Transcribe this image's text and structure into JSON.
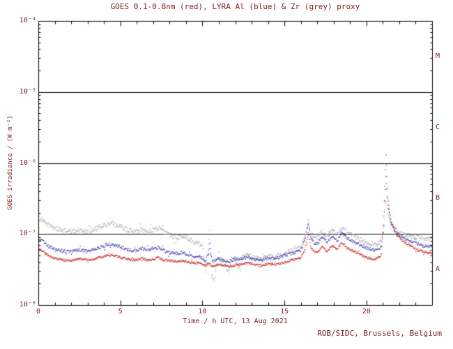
{
  "credit": "ROB/SIDC, Brussels, Belgium",
  "colors": {
    "red": "#cc2020",
    "blue": "#3b3bb0",
    "grey": "#a8a8a8",
    "axis": "#000000",
    "text": "#7a2121",
    "background": "#ffffff"
  },
  "chart_data": {
    "type": "scatter",
    "title": "GOES 0.1-0.8nm (red), LYRA Al (blue) & Zr (grey) proxy",
    "xlabel": "Time / h UTC, 13 Aug 2021",
    "ylabel": "GOES irradiance / (W m⁻²)",
    "x_range": [
      0,
      24
    ],
    "x_major_ticks": [
      0,
      5,
      10,
      15,
      20
    ],
    "x_minor_step": 1,
    "y_scale": "log",
    "y_exponent_range": [
      -8,
      -4
    ],
    "y_ticks": [
      {
        "exponent": -8,
        "label": "10⁻⁸"
      },
      {
        "exponent": -7,
        "label": "10⁻⁷"
      },
      {
        "exponent": -6,
        "label": "10⁻⁶"
      },
      {
        "exponent": -5,
        "label": "10⁻⁵"
      },
      {
        "exponent": -4,
        "label": "10⁻⁴"
      }
    ],
    "hline_exponents": [
      -7,
      -6,
      -5
    ],
    "flare_class_labels": [
      {
        "label": "A",
        "lower_exponent": -8
      },
      {
        "label": "B",
        "lower_exponent": -7
      },
      {
        "label": "C",
        "lower_exponent": -6
      },
      {
        "label": "M",
        "lower_exponent": -5
      }
    ],
    "grid": "off",
    "legend": "in-title",
    "series": [
      {
        "name": "LYRA Zr proxy",
        "color_key": "grey",
        "points": [
          [
            0.0,
            1.7e-07
          ],
          [
            0.3,
            1.5e-07
          ],
          [
            0.7,
            1.32e-07
          ],
          [
            1.0,
            1.22e-07
          ],
          [
            1.5,
            1.12e-07
          ],
          [
            2.0,
            1.08e-07
          ],
          [
            2.5,
            1.14e-07
          ],
          [
            3.0,
            1.08e-07
          ],
          [
            3.5,
            1.18e-07
          ],
          [
            4.0,
            1.32e-07
          ],
          [
            4.3,
            1.4e-07
          ],
          [
            4.7,
            1.35e-07
          ],
          [
            5.0,
            1.28e-07
          ],
          [
            5.5,
            1.12e-07
          ],
          [
            6.0,
            1.08e-07
          ],
          [
            6.3,
            1.16e-07
          ],
          [
            6.6,
            1.1e-07
          ],
          [
            7.0,
            1.14e-07
          ],
          [
            7.3,
            1.22e-07
          ],
          [
            7.6,
            1.1e-07
          ],
          [
            8.0,
            9.6e-08
          ],
          [
            8.4,
            9e-08
          ],
          [
            8.8,
            9.4e-08
          ],
          [
            9.2,
            8.6e-08
          ],
          [
            9.5,
            7.6e-08
          ],
          [
            9.8,
            7.9e-08
          ],
          [
            10.05,
            6e-08
          ],
          [
            10.2,
            2.8e-08
          ],
          [
            10.35,
            5.5e-08
          ],
          [
            10.44,
            1.1e-07
          ],
          [
            10.55,
            3e-08
          ],
          [
            10.7,
            2.2e-08
          ],
          [
            10.85,
            4e-08
          ],
          [
            11.0,
            4.6e-08
          ],
          [
            11.3,
            4.2e-08
          ],
          [
            11.6,
            2.9e-08
          ],
          [
            11.75,
            4.4e-08
          ],
          [
            12.0,
            4.6e-08
          ],
          [
            12.3,
            3.2e-08
          ],
          [
            12.45,
            4.8e-08
          ],
          [
            12.8,
            5e-08
          ],
          [
            13.2,
            4.6e-08
          ],
          [
            13.6,
            4.4e-08
          ],
          [
            14.0,
            4.9e-08
          ],
          [
            14.5,
            4.7e-08
          ],
          [
            15.0,
            5.4e-08
          ],
          [
            15.5,
            5.9e-08
          ],
          [
            16.0,
            6.6e-08
          ],
          [
            16.3,
            1.05e-07
          ],
          [
            16.45,
            1.6e-07
          ],
          [
            16.6,
            1.05e-07
          ],
          [
            16.8,
            9e-08
          ],
          [
            17.0,
            8.6e-08
          ],
          [
            17.3,
            1.1e-07
          ],
          [
            17.6,
            9.2e-08
          ],
          [
            17.9,
            1.15e-07
          ],
          [
            18.2,
            9.6e-08
          ],
          [
            18.5,
            1.22e-07
          ],
          [
            18.8,
            1.05e-07
          ],
          [
            19.1,
            9.5e-08
          ],
          [
            19.5,
            8.6e-08
          ],
          [
            20.0,
            7.6e-08
          ],
          [
            20.5,
            7e-08
          ],
          [
            20.9,
            7.8e-08
          ],
          [
            21.05,
            1.3e-07
          ],
          [
            21.18,
            3.6e-07
          ],
          [
            21.3,
            2e-07
          ],
          [
            21.5,
            1.35e-07
          ],
          [
            21.8,
            1.12e-07
          ],
          [
            22.2,
            1e-07
          ],
          [
            22.6,
            9.4e-08
          ],
          [
            23.0,
            9e-08
          ],
          [
            23.5,
            8.6e-08
          ],
          [
            24.0,
            8.8e-08
          ]
        ]
      },
      {
        "name": "LYRA Al proxy",
        "color_key": "blue",
        "points": [
          [
            0.0,
            8.8e-08
          ],
          [
            0.3,
            7.8e-08
          ],
          [
            0.7,
            6.6e-08
          ],
          [
            1.0,
            6.2e-08
          ],
          [
            1.5,
            5.8e-08
          ],
          [
            2.0,
            5.6e-08
          ],
          [
            2.5,
            6e-08
          ],
          [
            3.0,
            5.7e-08
          ],
          [
            3.5,
            6.1e-08
          ],
          [
            4.0,
            6.8e-08
          ],
          [
            4.3,
            7.2e-08
          ],
          [
            4.7,
            6.9e-08
          ],
          [
            5.0,
            6.6e-08
          ],
          [
            5.5,
            6e-08
          ],
          [
            6.0,
            5.8e-08
          ],
          [
            6.3,
            6.3e-08
          ],
          [
            6.6,
            5.9e-08
          ],
          [
            7.0,
            6.1e-08
          ],
          [
            7.3,
            6.5e-08
          ],
          [
            7.6,
            5.9e-08
          ],
          [
            8.0,
            5.5e-08
          ],
          [
            8.4,
            5.3e-08
          ],
          [
            8.8,
            5.5e-08
          ],
          [
            9.2,
            5.1e-08
          ],
          [
            9.5,
            4.8e-08
          ],
          [
            9.8,
            4.9e-08
          ],
          [
            10.05,
            4.4e-08
          ],
          [
            10.2,
            4.2e-08
          ],
          [
            10.44,
            6.5e-08
          ],
          [
            10.6,
            4.1e-08
          ],
          [
            10.85,
            4.3e-08
          ],
          [
            11.0,
            4.5e-08
          ],
          [
            11.3,
            4.3e-08
          ],
          [
            11.6,
            4.1e-08
          ],
          [
            12.0,
            4.4e-08
          ],
          [
            12.45,
            4.6e-08
          ],
          [
            12.8,
            4.7e-08
          ],
          [
            13.2,
            4.4e-08
          ],
          [
            13.6,
            4.3e-08
          ],
          [
            14.0,
            4.6e-08
          ],
          [
            14.5,
            4.5e-08
          ],
          [
            15.0,
            5e-08
          ],
          [
            15.5,
            5.4e-08
          ],
          [
            16.0,
            5.9e-08
          ],
          [
            16.3,
            9e-08
          ],
          [
            16.45,
            1.45e-07
          ],
          [
            16.6,
            9e-08
          ],
          [
            16.8,
            7.6e-08
          ],
          [
            17.0,
            7.2e-08
          ],
          [
            17.3,
            9.2e-08
          ],
          [
            17.6,
            7.7e-08
          ],
          [
            17.9,
            9.6e-08
          ],
          [
            18.2,
            8e-08
          ],
          [
            18.5,
            1.04e-07
          ],
          [
            18.8,
            8.8e-08
          ],
          [
            19.1,
            8e-08
          ],
          [
            19.5,
            7.2e-08
          ],
          [
            20.0,
            6.4e-08
          ],
          [
            20.5,
            5.9e-08
          ],
          [
            20.9,
            6.6e-08
          ],
          [
            21.05,
            1.2e-07
          ],
          [
            21.18,
            6.5e-07
          ],
          [
            21.3,
            2.6e-07
          ],
          [
            21.5,
            1.4e-07
          ],
          [
            21.8,
            1.05e-07
          ],
          [
            22.2,
            9e-08
          ],
          [
            22.6,
            8e-08
          ],
          [
            23.0,
            7.4e-08
          ],
          [
            23.5,
            6.8e-08
          ],
          [
            24.0,
            6.6e-08
          ]
        ]
      },
      {
        "name": "GOES 0.1-0.8nm",
        "color_key": "red",
        "points": [
          [
            0.0,
            6.2e-08
          ],
          [
            0.3,
            5.6e-08
          ],
          [
            0.7,
            4.8e-08
          ],
          [
            1.0,
            4.5e-08
          ],
          [
            1.5,
            4.3e-08
          ],
          [
            2.0,
            4.2e-08
          ],
          [
            2.5,
            4.5e-08
          ],
          [
            3.0,
            4.3e-08
          ],
          [
            3.5,
            4.5e-08
          ],
          [
            4.0,
            4.9e-08
          ],
          [
            4.3,
            5.1e-08
          ],
          [
            4.7,
            4.9e-08
          ],
          [
            5.0,
            4.7e-08
          ],
          [
            5.5,
            4.4e-08
          ],
          [
            6.0,
            4.3e-08
          ],
          [
            6.3,
            4.6e-08
          ],
          [
            6.6,
            4.3e-08
          ],
          [
            7.0,
            4.4e-08
          ],
          [
            7.3,
            4.7e-08
          ],
          [
            7.6,
            4.3e-08
          ],
          [
            8.0,
            4.2e-08
          ],
          [
            8.4,
            4.1e-08
          ],
          [
            8.8,
            4.2e-08
          ],
          [
            9.2,
            4e-08
          ],
          [
            9.5,
            3.9e-08
          ],
          [
            9.8,
            3.9e-08
          ],
          [
            10.05,
            3.7e-08
          ],
          [
            10.2,
            3.6e-08
          ],
          [
            10.44,
            3.9e-08
          ],
          [
            10.6,
            3.5e-08
          ],
          [
            10.85,
            3.6e-08
          ],
          [
            11.0,
            3.7e-08
          ],
          [
            11.3,
            3.6e-08
          ],
          [
            11.6,
            3.5e-08
          ],
          [
            12.0,
            3.6e-08
          ],
          [
            12.45,
            3.8e-08
          ],
          [
            12.8,
            3.9e-08
          ],
          [
            13.2,
            3.7e-08
          ],
          [
            13.6,
            3.6e-08
          ],
          [
            14.0,
            3.8e-08
          ],
          [
            14.5,
            3.7e-08
          ],
          [
            15.0,
            4e-08
          ],
          [
            15.5,
            4.3e-08
          ],
          [
            16.0,
            4.6e-08
          ],
          [
            16.3,
            6.5e-08
          ],
          [
            16.45,
            1.05e-07
          ],
          [
            16.6,
            6.6e-08
          ],
          [
            16.8,
            5.7e-08
          ],
          [
            17.0,
            5.4e-08
          ],
          [
            17.3,
            6.6e-08
          ],
          [
            17.6,
            5.7e-08
          ],
          [
            17.9,
            7e-08
          ],
          [
            18.2,
            6e-08
          ],
          [
            18.5,
            7.6e-08
          ],
          [
            18.8,
            6.4e-08
          ],
          [
            19.1,
            5.9e-08
          ],
          [
            19.5,
            5.3e-08
          ],
          [
            20.0,
            4.7e-08
          ],
          [
            20.5,
            4.4e-08
          ],
          [
            20.9,
            5e-08
          ],
          [
            21.05,
            1.5e-07
          ],
          [
            21.18,
            1.3e-06
          ],
          [
            21.3,
            3.2e-07
          ],
          [
            21.5,
            1.5e-07
          ],
          [
            21.8,
            1e-07
          ],
          [
            22.2,
            8e-08
          ],
          [
            22.6,
            7e-08
          ],
          [
            23.0,
            6.2e-08
          ],
          [
            23.5,
            5.6e-08
          ],
          [
            24.0,
            5.3e-08
          ]
        ]
      }
    ]
  }
}
